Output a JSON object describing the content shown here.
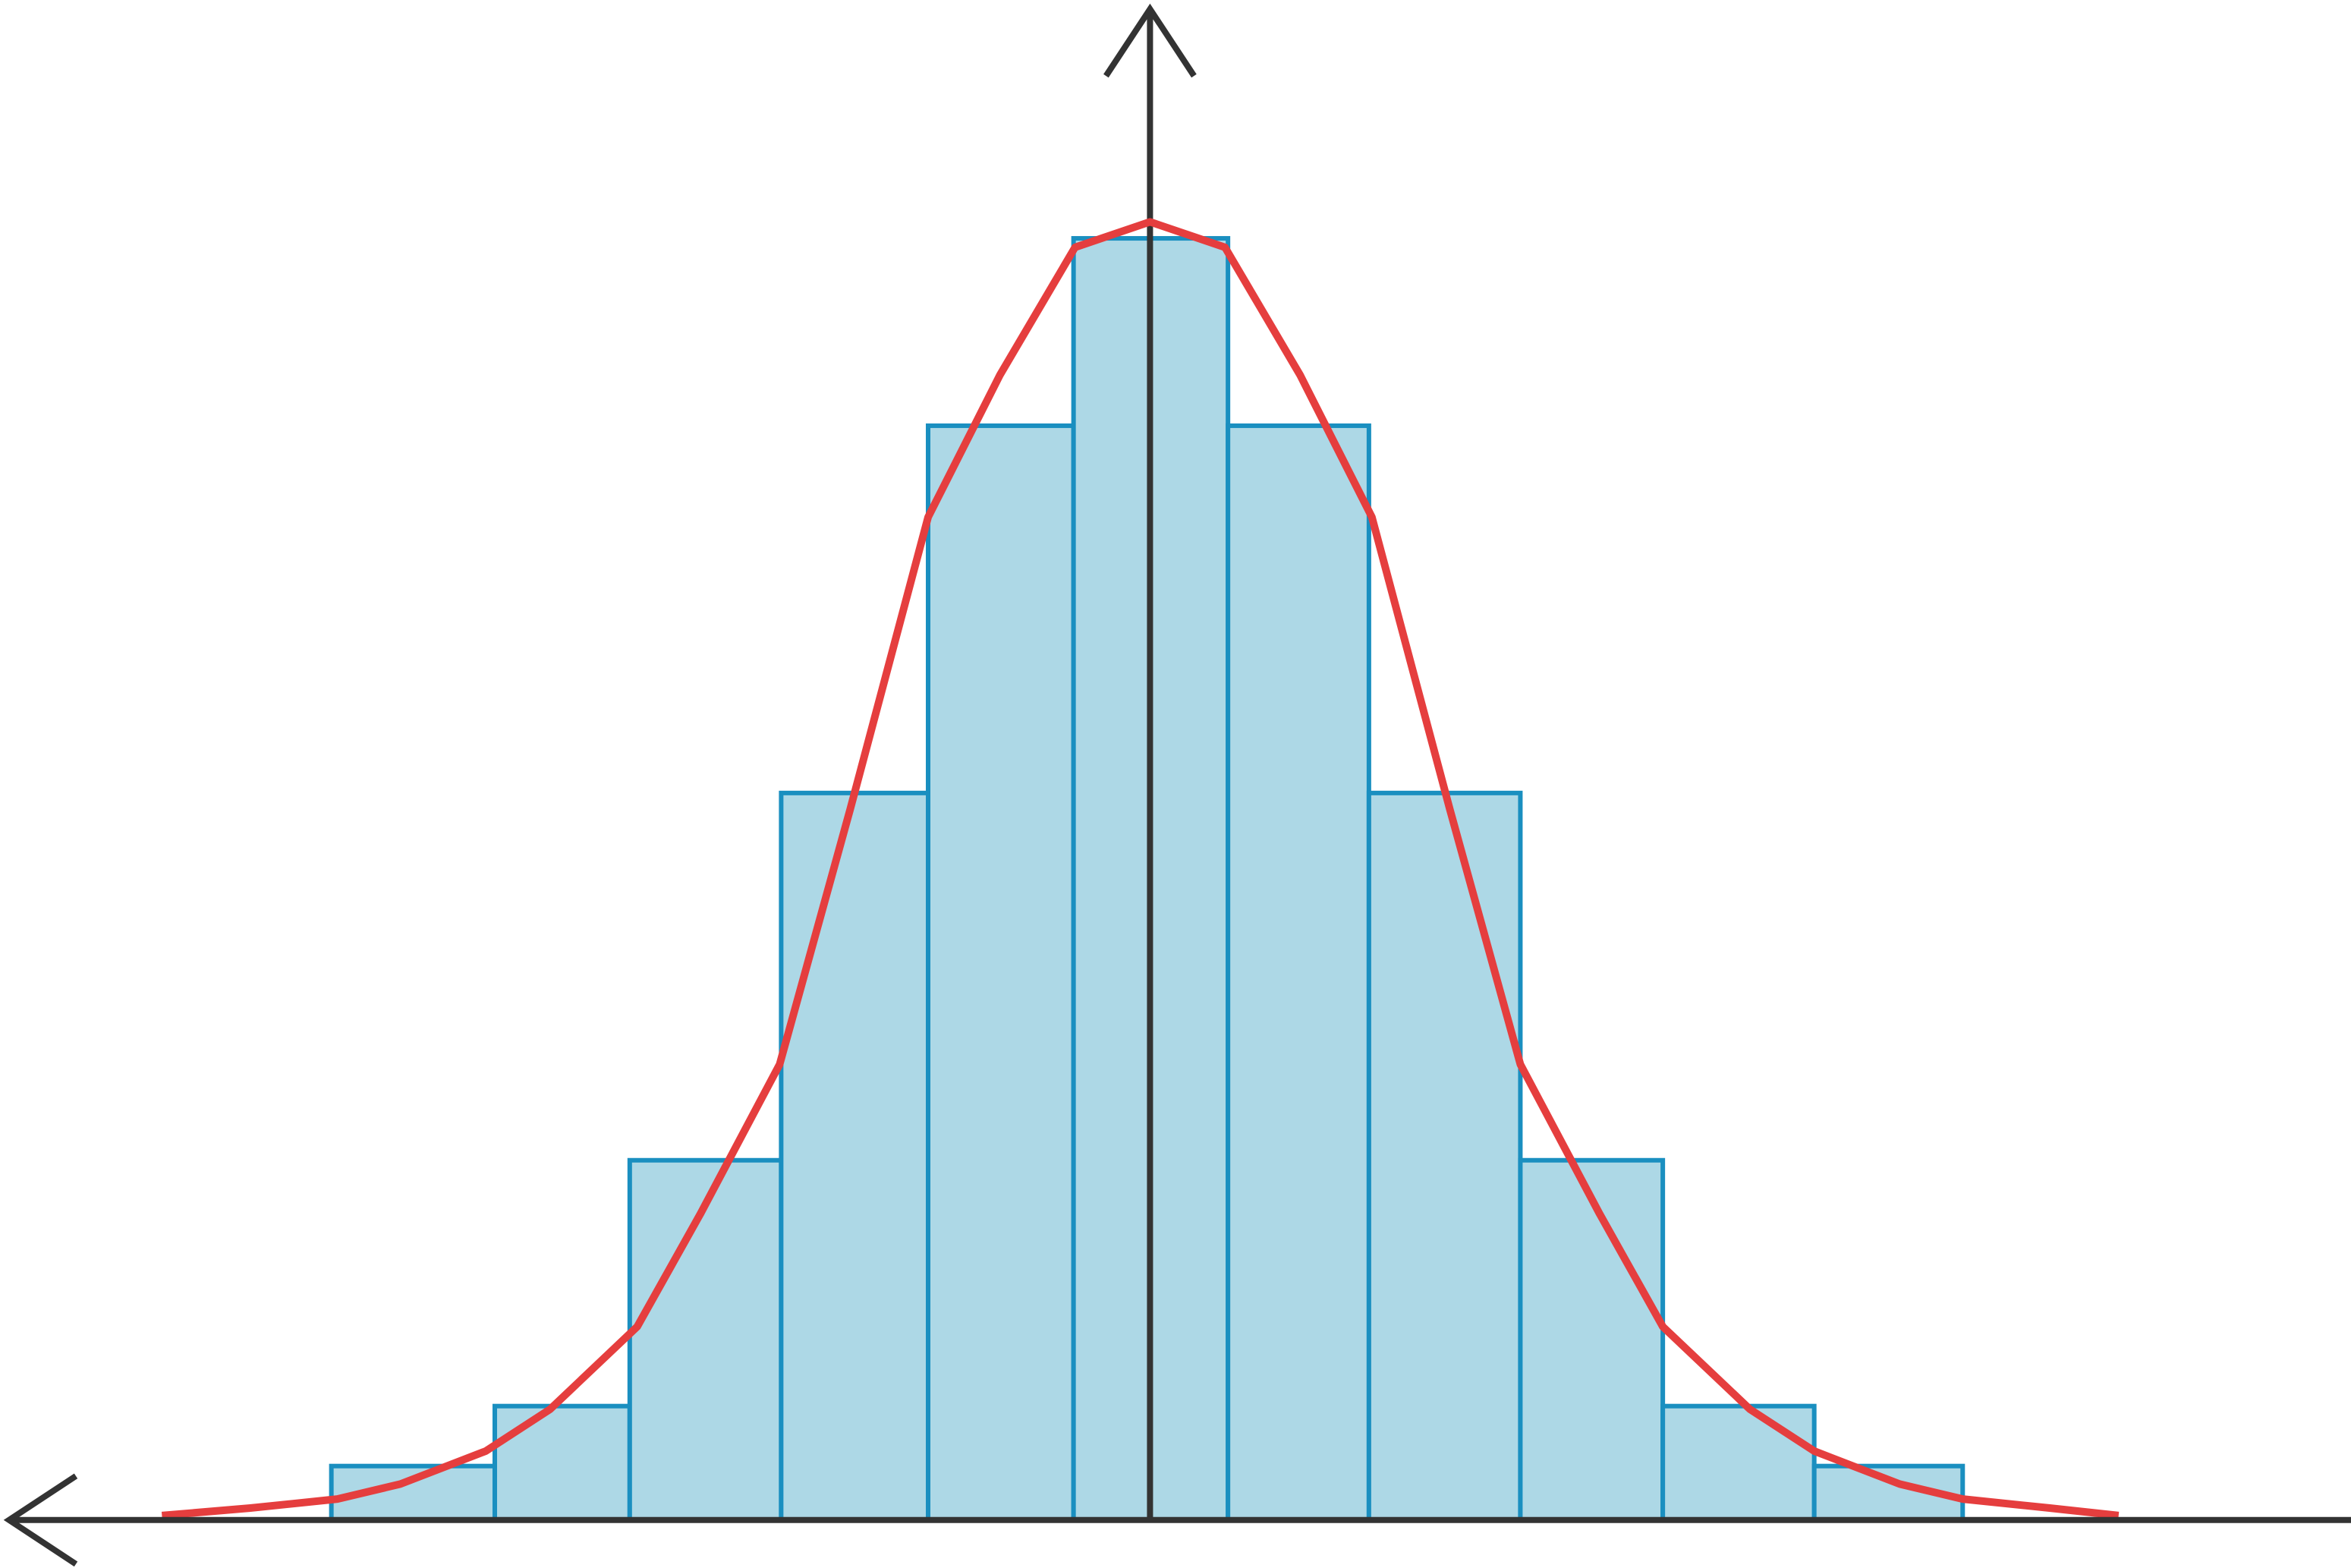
{
  "chart_data": {
    "type": "histogram",
    "bins": [
      -5.46,
      -4.37,
      -3.47,
      -2.46,
      -1.48,
      -0.51,
      0.52,
      1.46,
      2.47,
      3.42,
      4.43,
      5.42
    ],
    "counts": [
      0.36,
      0.76,
      2.4,
      4.85,
      7.3,
      8.55,
      7.3,
      4.85,
      2.4,
      0.76,
      0.36
    ],
    "color": "#add8e6",
    "edge_color": "#1a8fc0",
    "curve": {
      "color": "#e53e3e",
      "x": [
        -6.59,
        -6,
        -5.42,
        -5,
        -4.43,
        -4,
        -3.42,
        -3,
        -2.47,
        -2,
        -1.48,
        -1,
        -0.5,
        0,
        0.5,
        1,
        1.48,
        2,
        2.47,
        3,
        3.42,
        4,
        4.43,
        5,
        5.42,
        6,
        6.46
      ],
      "y": [
        0.03,
        0.08,
        0.14,
        0.24,
        0.46,
        0.74,
        1.29,
        2.04,
        3.04,
        4.74,
        6.69,
        7.64,
        8.49,
        8.66,
        8.49,
        7.64,
        6.69,
        4.74,
        3.04,
        2.04,
        1.29,
        0.74,
        0.46,
        0.24,
        0.14,
        0.08,
        0.03
      ]
    },
    "xlim": [
      -7.67,
      8.01
    ],
    "ylim": [
      -0.32,
      10.14
    ]
  }
}
